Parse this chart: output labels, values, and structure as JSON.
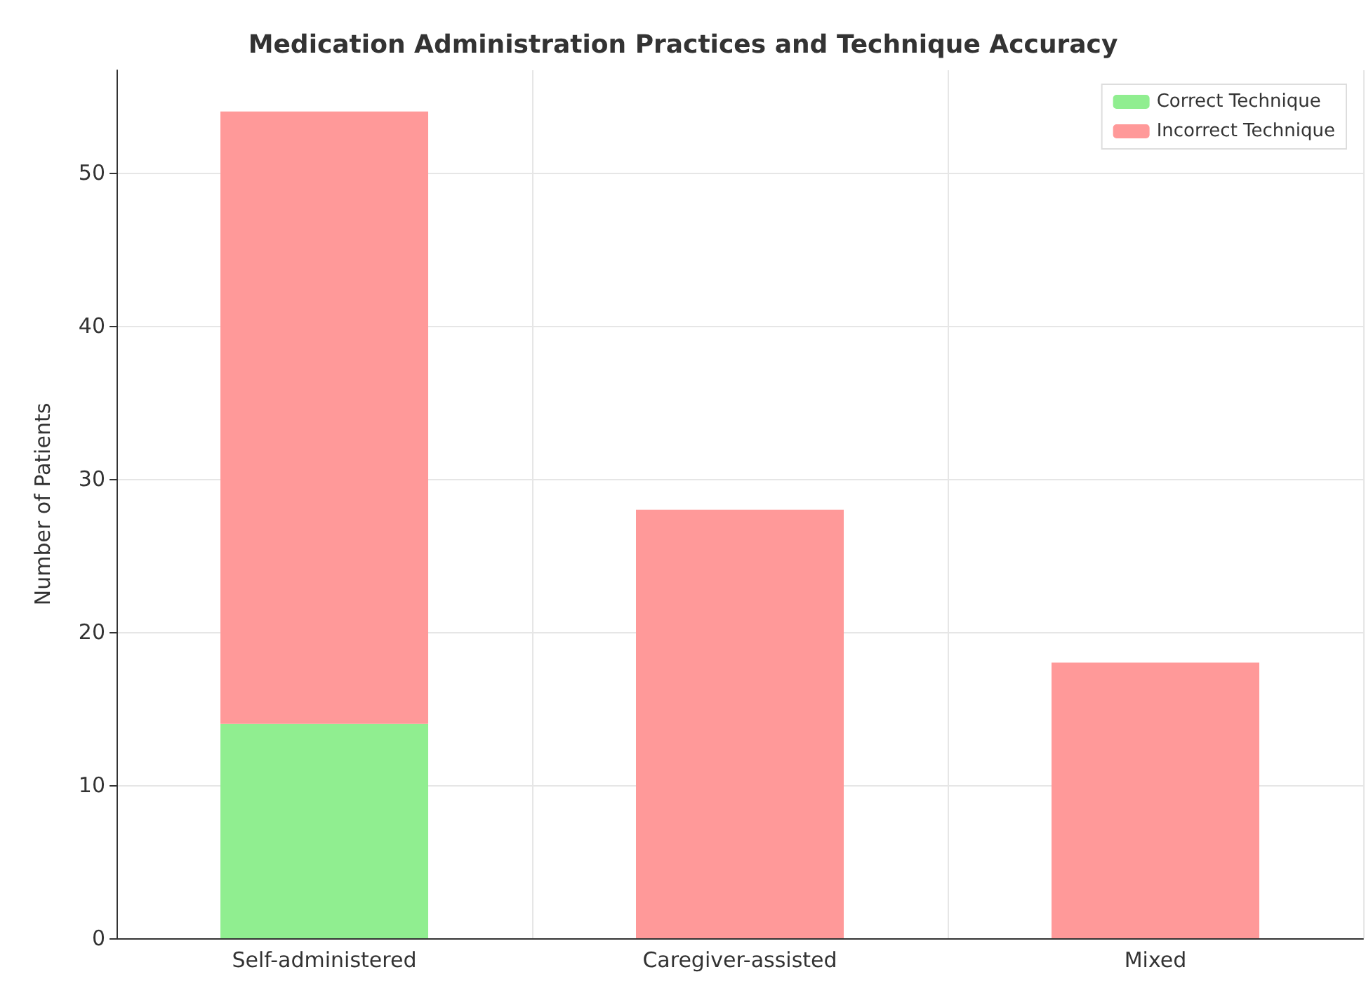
{
  "chart_data": {
    "type": "bar",
    "title": "Medication Administration Practices and Technique Accuracy",
    "ylabel": "Number of Patients",
    "categories": [
      "Self-administered",
      "Caregiver-assisted",
      "Mixed"
    ],
    "series": [
      {
        "name": "Correct Technique",
        "color": "#90ee90",
        "values": [
          14,
          0,
          0
        ]
      },
      {
        "name": "Incorrect Technique",
        "color": "#ff9999",
        "values": [
          40,
          28,
          18
        ]
      }
    ],
    "stacked": true,
    "ylim": [
      0,
      56.7
    ],
    "yticks": [
      0,
      10,
      20,
      30,
      40,
      50
    ],
    "grid": true,
    "legend": "top right"
  }
}
